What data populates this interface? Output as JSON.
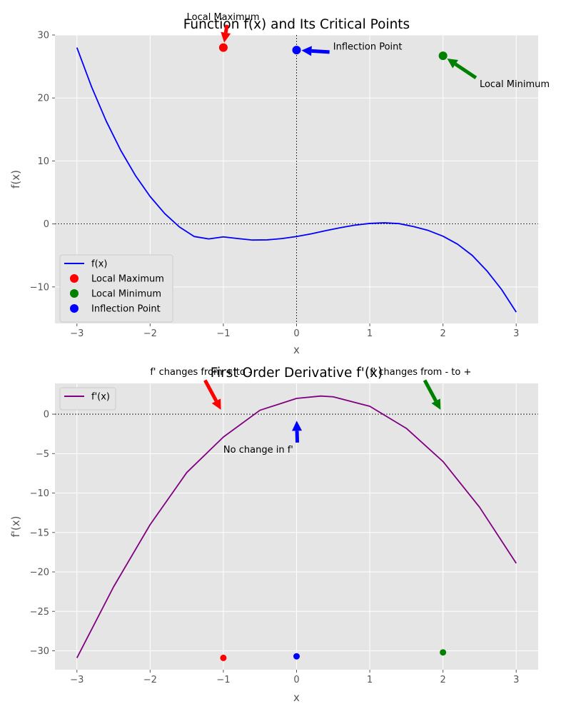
{
  "chart_data": [
    {
      "type": "line",
      "title": "Function f(x) and Its Critical Points",
      "xlabel": "x",
      "ylabel": "f(x)",
      "xlim": [
        -3.3,
        3.3
      ],
      "ylim": [
        -15.8,
        30
      ],
      "xticks": [
        -3,
        -2,
        -1,
        0,
        1,
        2,
        3
      ],
      "xtick_labels": [
        "−3",
        "−2",
        "−1",
        "0",
        "1",
        "2",
        "3"
      ],
      "yticks": [
        -10,
        0,
        10,
        20,
        30
      ],
      "ytick_labels": [
        "−10",
        "0",
        "10",
        "20",
        "30"
      ],
      "grid": true,
      "legend_position": "lower-left",
      "legend": [
        "f(x)",
        "Local Maximum",
        "Local Minimum",
        "Inflection Point"
      ],
      "reference_lines": {
        "y": 0,
        "x": 0
      },
      "series": [
        {
          "name": "f(x)",
          "color": "#0000ff",
          "x": [
            -3,
            -2.8,
            -2.6,
            -2.4,
            -2.2,
            -2,
            -1.8,
            -1.6,
            -1.4,
            -1.2,
            -1,
            -0.8,
            -0.6,
            -0.4,
            -0.2,
            0,
            0.2,
            0.4,
            0.6,
            0.8,
            1,
            1.2,
            1.4,
            1.6,
            1.8,
            2,
            2.2,
            2.4,
            2.6,
            2.8,
            3
          ],
          "y": [
            28,
            21.77,
            16.33,
            11.65,
            7.67,
            4.35,
            1.64,
            -0.48,
            -1.99,
            -2.38,
            -2.05,
            -2.32,
            -2.56,
            -2.53,
            -2.32,
            -2,
            -1.57,
            -1.06,
            -0.6,
            -0.19,
            0.08,
            0.18,
            0.05,
            -0.42,
            -1.04,
            -1.95,
            -3.22,
            -5.0,
            -7.45,
            -10.4,
            -14
          ]
        },
        {
          "name": "Local Maximum",
          "color": "#ff0000",
          "marker": "point",
          "x": [
            -1
          ],
          "y": [
            28
          ]
        },
        {
          "name": "Inflection Point",
          "color": "#0000ff",
          "marker": "point",
          "x": [
            0
          ],
          "y": [
            27.6
          ]
        },
        {
          "name": "Local Minimum",
          "color": "#008000",
          "marker": "point",
          "x": [
            2
          ],
          "y": [
            26.7
          ]
        }
      ],
      "annotations": [
        {
          "text": "Local Maximum",
          "color": "#ff0000",
          "point": [
            -1,
            28
          ],
          "text_pos": [
            -1.5,
            32.4
          ],
          "arrow_tail": [
            -0.95,
            31.6
          ],
          "anchor": "start"
        },
        {
          "text": "Inflection Point",
          "color": "#0000ff",
          "point": [
            0,
            27.6
          ],
          "text_pos": [
            0.5,
            27.7
          ],
          "arrow_tail": [
            0.45,
            27.3
          ],
          "anchor": "start"
        },
        {
          "text": "Local Minimum",
          "color": "#008000",
          "point": [
            2,
            26.7
          ],
          "text_pos": [
            2.5,
            21.7
          ],
          "arrow_tail": [
            2.45,
            23.2
          ],
          "anchor": "start"
        }
      ]
    },
    {
      "type": "line",
      "title": "First Order Derivative f'(x)",
      "xlabel": "x",
      "ylabel": "f'(x)",
      "xlim": [
        -3.3,
        3.3
      ],
      "ylim": [
        -32.4,
        3.9
      ],
      "xticks": [
        -3,
        -2,
        -1,
        0,
        1,
        2,
        3
      ],
      "xtick_labels": [
        "−3",
        "−2",
        "−1",
        "0",
        "1",
        "2",
        "3"
      ],
      "yticks": [
        -30,
        -25,
        -20,
        -15,
        -10,
        -5,
        0
      ],
      "ytick_labels": [
        "−30",
        "−25",
        "−20",
        "−15",
        "−10",
        "−5",
        "0"
      ],
      "grid": true,
      "legend_position": "top-left",
      "legend": [
        "f'(x)"
      ],
      "reference_lines": {
        "y": 0
      },
      "series": [
        {
          "name": "f'(x)",
          "color": "#800080",
          "x": [
            -3,
            -2.5,
            -2,
            -1.5,
            -1,
            -0.5,
            0,
            0.33,
            0.5,
            1,
            1.5,
            2,
            2.5,
            3
          ],
          "y": [
            -30.9,
            -21.9,
            -14.0,
            -7.4,
            -2.9,
            0.5,
            2.0,
            2.3,
            2.2,
            1.0,
            -1.8,
            -6.0,
            -11.8,
            -18.9
          ]
        },
        {
          "name": "Local Maximum",
          "color": "#ff0000",
          "marker": "point",
          "x": [
            -1
          ],
          "y": [
            -30.9
          ]
        },
        {
          "name": "Inflection Point",
          "color": "#0000ff",
          "marker": "point",
          "x": [
            0
          ],
          "y": [
            -30.7
          ]
        },
        {
          "name": "Local Minimum",
          "color": "#008000",
          "marker": "point",
          "x": [
            2
          ],
          "y": [
            -30.2
          ]
        }
      ],
      "annotations": [
        {
          "text": "f' changes from + to -",
          "color": "#ff0000",
          "point": [
            -1,
            0
          ],
          "text_pos": [
            -2.0,
            5.0
          ],
          "arrow_tail": [
            -1.25,
            4.3
          ],
          "anchor": "start"
        },
        {
          "text": "No change in f'",
          "color": "#0000ff",
          "point": [
            0,
            -0.2
          ],
          "text_pos": [
            -1.0,
            -4.9
          ],
          "arrow_tail": [
            0.01,
            -3.6
          ],
          "anchor": "start"
        },
        {
          "text": "f' changes from - to +",
          "color": "#008000",
          "point": [
            2,
            0
          ],
          "text_pos": [
            1.0,
            5.0
          ],
          "arrow_tail": [
            1.75,
            4.3
          ],
          "anchor": "start"
        }
      ]
    }
  ]
}
